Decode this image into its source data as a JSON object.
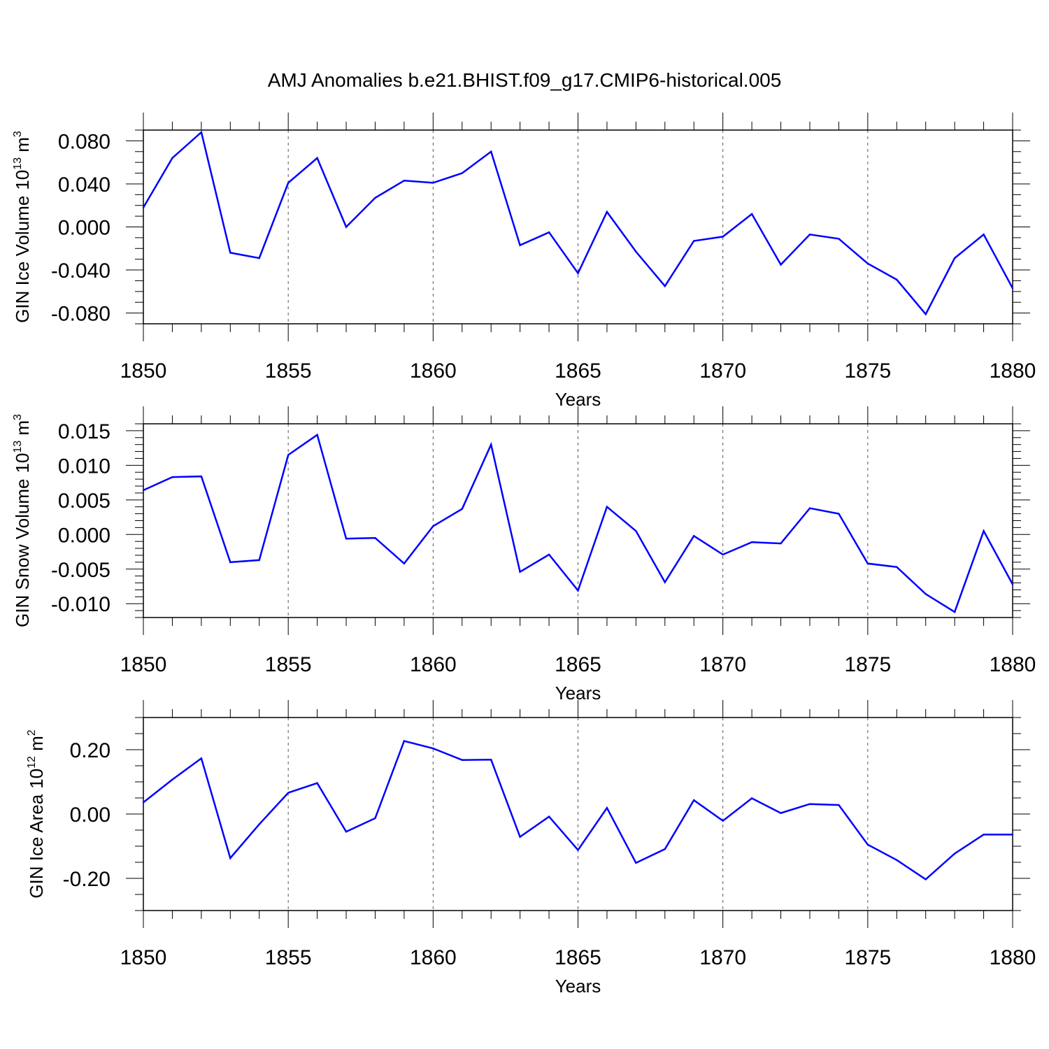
{
  "chart_data": {
    "title": "AMJ Anomalies b.e21.BHIST.f09_g17.CMIP6-historical.005",
    "panels": [
      {
        "type": "line",
        "name": "ice-volume",
        "ylabel": "GIN Ice Volume",
        "ylabel_unit_base": "10",
        "ylabel_unit_exp": "13",
        "ylabel_unit_rest": " m",
        "ylabel_unit_exp2": "3",
        "xlabel": "Years",
        "xlim": [
          1850,
          1880
        ],
        "ylim": [
          -0.09,
          0.09
        ],
        "yticks": [
          -0.08,
          -0.04,
          0.0,
          0.04,
          0.08
        ],
        "ytick_labels": [
          "-0.080",
          "-0.040",
          "0.000",
          "0.040",
          "0.080"
        ],
        "yminor_step": 0.01,
        "xticks": [
          1850,
          1855,
          1860,
          1865,
          1870,
          1875,
          1880
        ],
        "xtick_labels": [
          "1850",
          "1855",
          "1860",
          "1865",
          "1870",
          "1875",
          "1880"
        ],
        "series": [
          {
            "name": "GIN Ice Volume",
            "color": "#0000ff",
            "x": [
              1850,
              1851,
              1852,
              1853,
              1854,
              1855,
              1856,
              1857,
              1858,
              1859,
              1860,
              1861,
              1862,
              1863,
              1864,
              1865,
              1866,
              1867,
              1868,
              1869,
              1870,
              1871,
              1872,
              1873,
              1874,
              1875,
              1876,
              1877,
              1878,
              1879,
              1880
            ],
            "values": [
              0.018,
              0.064,
              0.088,
              -0.024,
              -0.029,
              0.041,
              0.064,
              0.0,
              0.027,
              0.043,
              0.041,
              0.05,
              0.07,
              -0.017,
              -0.005,
              -0.043,
              0.014,
              -0.023,
              -0.055,
              -0.013,
              -0.009,
              0.012,
              -0.035,
              -0.007,
              -0.011,
              -0.034,
              -0.049,
              -0.081,
              -0.029,
              -0.007,
              -0.057
            ]
          }
        ]
      },
      {
        "type": "line",
        "name": "snow-volume",
        "ylabel": "GIN Snow Volume",
        "ylabel_unit_base": "10",
        "ylabel_unit_exp": "13",
        "ylabel_unit_rest": " m",
        "ylabel_unit_exp2": "3",
        "xlabel": "Years",
        "xlim": [
          1850,
          1880
        ],
        "ylim": [
          -0.012,
          0.016
        ],
        "yticks": [
          -0.01,
          -0.005,
          0.0,
          0.005,
          0.01,
          0.015
        ],
        "ytick_labels": [
          "-0.010",
          "-0.005",
          "0.000",
          "0.005",
          "0.010",
          "0.015"
        ],
        "yminor_step": 0.001,
        "xticks": [
          1850,
          1855,
          1860,
          1865,
          1870,
          1875,
          1880
        ],
        "xtick_labels": [
          "1850",
          "1855",
          "1860",
          "1865",
          "1870",
          "1875",
          "1880"
        ],
        "series": [
          {
            "name": "GIN Snow Volume",
            "color": "#0000ff",
            "x": [
              1850,
              1851,
              1852,
              1853,
              1854,
              1855,
              1856,
              1857,
              1858,
              1859,
              1860,
              1861,
              1862,
              1863,
              1864,
              1865,
              1866,
              1867,
              1868,
              1869,
              1870,
              1871,
              1872,
              1873,
              1874,
              1875,
              1876,
              1877,
              1878,
              1879,
              1880
            ],
            "values": [
              0.0064,
              0.0083,
              0.0084,
              -0.004,
              -0.0037,
              0.0115,
              0.0144,
              -0.0006,
              -0.0005,
              -0.0042,
              0.0012,
              0.0037,
              0.013,
              -0.0054,
              -0.0029,
              -0.0081,
              0.004,
              0.0005,
              -0.0069,
              -0.0002,
              -0.0029,
              -0.0011,
              -0.0013,
              0.0038,
              0.003,
              -0.0042,
              -0.0047,
              -0.0086,
              -0.0112,
              0.0005,
              -0.0072
            ]
          }
        ]
      },
      {
        "type": "line",
        "name": "ice-area",
        "ylabel": "GIN Ice Area",
        "ylabel_unit_base": "10",
        "ylabel_unit_exp": "12",
        "ylabel_unit_rest": " m",
        "ylabel_unit_exp2": "2",
        "xlabel": "Years",
        "xlim": [
          1850,
          1880
        ],
        "ylim": [
          -0.3,
          0.3
        ],
        "yticks": [
          -0.2,
          0.0,
          0.2
        ],
        "ytick_labels": [
          "-0.20",
          "0.00",
          "0.20"
        ],
        "yminor_step": 0.05,
        "xticks": [
          1850,
          1855,
          1860,
          1865,
          1870,
          1875,
          1880
        ],
        "xtick_labels": [
          "1850",
          "1855",
          "1860",
          "1865",
          "1870",
          "1875",
          "1880"
        ],
        "series": [
          {
            "name": "GIN Ice Area",
            "color": "#0000ff",
            "x": [
              1850,
              1851,
              1852,
              1853,
              1854,
              1855,
              1856,
              1857,
              1858,
              1859,
              1860,
              1861,
              1862,
              1863,
              1864,
              1865,
              1866,
              1867,
              1868,
              1869,
              1870,
              1871,
              1872,
              1873,
              1874,
              1875,
              1876,
              1877,
              1878,
              1879,
              1880
            ],
            "values": [
              0.036,
              0.107,
              0.173,
              -0.137,
              -0.032,
              0.066,
              0.096,
              -0.055,
              -0.013,
              0.227,
              0.204,
              0.168,
              0.169,
              -0.071,
              -0.008,
              -0.112,
              0.019,
              -0.152,
              -0.109,
              0.043,
              -0.021,
              0.049,
              0.003,
              0.031,
              0.028,
              -0.095,
              -0.143,
              -0.203,
              -0.123,
              -0.064,
              -0.064
            ]
          }
        ]
      }
    ]
  }
}
